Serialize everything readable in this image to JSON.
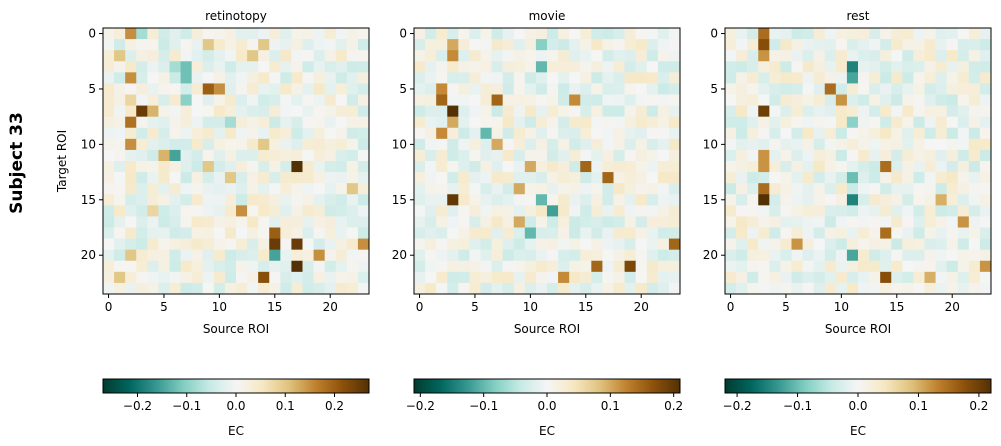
{
  "figure": {
    "row_label": "Subject 33"
  },
  "chart_data": [
    {
      "type": "heatmap",
      "title": "retinotopy",
      "xlabel": "Source ROI",
      "ylabel": "Target ROI",
      "n_rows": 24,
      "n_cols": 24,
      "x_ticks": [
        0,
        5,
        10,
        15,
        20
      ],
      "y_ticks": [
        0,
        5,
        10,
        15,
        20
      ],
      "colormap": "BrBG_r",
      "colorbar": {
        "label": "EC",
        "range": [
          -0.27,
          0.27
        ],
        "ticks": [
          -0.2,
          -0.1,
          0.0,
          0.1,
          0.2
        ],
        "tick_labels": [
          "−0.2",
          "−0.1",
          "0.0",
          "0.1",
          "0.2"
        ]
      },
      "strong_cells": [
        {
          "row": 0,
          "col": 2,
          "value": 0.15
        },
        {
          "row": 0,
          "col": 3,
          "value": -0.08
        },
        {
          "row": 1,
          "col": 9,
          "value": 0.1
        },
        {
          "row": 1,
          "col": 14,
          "value": 0.1
        },
        {
          "row": 2,
          "col": 1,
          "value": 0.1
        },
        {
          "row": 2,
          "col": 13,
          "value": 0.1
        },
        {
          "row": 3,
          "col": 6,
          "value": -0.08
        },
        {
          "row": 3,
          "col": 7,
          "value": -0.12
        },
        {
          "row": 4,
          "col": 2,
          "value": 0.15
        },
        {
          "row": 4,
          "col": 7,
          "value": -0.12
        },
        {
          "row": 5,
          "col": 9,
          "value": 0.2
        },
        {
          "row": 5,
          "col": 10,
          "value": 0.15
        },
        {
          "row": 6,
          "col": 7,
          "value": -0.1
        },
        {
          "row": 6,
          "col": 2,
          "value": 0.08
        },
        {
          "row": 7,
          "col": 3,
          "value": 0.25
        },
        {
          "row": 7,
          "col": 4,
          "value": 0.12
        },
        {
          "row": 8,
          "col": 2,
          "value": 0.18
        },
        {
          "row": 8,
          "col": 11,
          "value": -0.08
        },
        {
          "row": 10,
          "col": 2,
          "value": 0.15
        },
        {
          "row": 10,
          "col": 14,
          "value": 0.1
        },
        {
          "row": 11,
          "col": 5,
          "value": 0.12
        },
        {
          "row": 11,
          "col": 6,
          "value": -0.15
        },
        {
          "row": 12,
          "col": 17,
          "value": 0.27
        },
        {
          "row": 12,
          "col": 9,
          "value": 0.1
        },
        {
          "row": 13,
          "col": 11,
          "value": 0.1
        },
        {
          "row": 14,
          "col": 22,
          "value": 0.1
        },
        {
          "row": 16,
          "col": 12,
          "value": 0.15
        },
        {
          "row": 16,
          "col": 4,
          "value": 0.08
        },
        {
          "row": 18,
          "col": 15,
          "value": 0.2
        },
        {
          "row": 19,
          "col": 15,
          "value": 0.25
        },
        {
          "row": 19,
          "col": 17,
          "value": 0.25
        },
        {
          "row": 19,
          "col": 23,
          "value": 0.15
        },
        {
          "row": 20,
          "col": 15,
          "value": -0.15
        },
        {
          "row": 20,
          "col": 2,
          "value": 0.1
        },
        {
          "row": 20,
          "col": 19,
          "value": 0.15
        },
        {
          "row": 21,
          "col": 17,
          "value": 0.27
        },
        {
          "row": 22,
          "col": 14,
          "value": 0.22
        },
        {
          "row": 22,
          "col": 1,
          "value": 0.1
        }
      ]
    },
    {
      "type": "heatmap",
      "title": "movie",
      "xlabel": "Source ROI",
      "n_rows": 24,
      "n_cols": 24,
      "x_ticks": [
        0,
        5,
        10,
        15,
        20
      ],
      "y_ticks": [
        0,
        5,
        10,
        15,
        20
      ],
      "colormap": "BrBG_r",
      "colorbar": {
        "label": "EC",
        "range": [
          -0.21,
          0.21
        ],
        "ticks": [
          -0.2,
          -0.1,
          0.0,
          0.1,
          0.2
        ],
        "tick_labels": [
          "−0.2",
          "−0.1",
          "0.0",
          "0.1",
          "0.2"
        ]
      },
      "strong_cells": [
        {
          "row": 1,
          "col": 3,
          "value": 0.1
        },
        {
          "row": 1,
          "col": 11,
          "value": -0.08
        },
        {
          "row": 2,
          "col": 3,
          "value": 0.12
        },
        {
          "row": 3,
          "col": 11,
          "value": -0.1
        },
        {
          "row": 5,
          "col": 2,
          "value": 0.12
        },
        {
          "row": 6,
          "col": 2,
          "value": 0.15
        },
        {
          "row": 6,
          "col": 7,
          "value": 0.15
        },
        {
          "row": 6,
          "col": 14,
          "value": 0.12
        },
        {
          "row": 7,
          "col": 3,
          "value": 0.21
        },
        {
          "row": 8,
          "col": 3,
          "value": 0.1
        },
        {
          "row": 9,
          "col": 2,
          "value": 0.12
        },
        {
          "row": 9,
          "col": 6,
          "value": -0.1
        },
        {
          "row": 10,
          "col": 7,
          "value": 0.1
        },
        {
          "row": 12,
          "col": 15,
          "value": 0.15
        },
        {
          "row": 12,
          "col": 10,
          "value": 0.1
        },
        {
          "row": 13,
          "col": 17,
          "value": 0.15
        },
        {
          "row": 14,
          "col": 9,
          "value": 0.1
        },
        {
          "row": 15,
          "col": 3,
          "value": 0.2
        },
        {
          "row": 15,
          "col": 11,
          "value": -0.1
        },
        {
          "row": 16,
          "col": 12,
          "value": -0.12
        },
        {
          "row": 17,
          "col": 9,
          "value": 0.1
        },
        {
          "row": 18,
          "col": 10,
          "value": -0.1
        },
        {
          "row": 19,
          "col": 23,
          "value": 0.15
        },
        {
          "row": 21,
          "col": 16,
          "value": 0.15
        },
        {
          "row": 21,
          "col": 19,
          "value": 0.18
        },
        {
          "row": 22,
          "col": 13,
          "value": 0.12
        }
      ]
    },
    {
      "type": "heatmap",
      "title": "rest",
      "xlabel": "Source ROI",
      "n_rows": 24,
      "n_cols": 24,
      "x_ticks": [
        0,
        5,
        10,
        15,
        20
      ],
      "y_ticks": [
        0,
        5,
        10,
        15,
        20
      ],
      "colormap": "BrBG_r",
      "colorbar": {
        "label": "EC",
        "range": [
          -0.22,
          0.22
        ],
        "ticks": [
          -0.2,
          -0.1,
          0.0,
          0.1,
          0.2
        ],
        "tick_labels": [
          "−0.2",
          "−0.1",
          "0.0",
          "0.1",
          "0.2"
        ]
      },
      "strong_cells": [
        {
          "row": 0,
          "col": 3,
          "value": 0.15
        },
        {
          "row": 1,
          "col": 3,
          "value": 0.18
        },
        {
          "row": 2,
          "col": 3,
          "value": 0.12
        },
        {
          "row": 3,
          "col": 11,
          "value": -0.15
        },
        {
          "row": 4,
          "col": 11,
          "value": -0.12
        },
        {
          "row": 5,
          "col": 9,
          "value": 0.15
        },
        {
          "row": 6,
          "col": 10,
          "value": 0.12
        },
        {
          "row": 7,
          "col": 3,
          "value": 0.2
        },
        {
          "row": 8,
          "col": 11,
          "value": -0.08
        },
        {
          "row": 11,
          "col": 3,
          "value": 0.12
        },
        {
          "row": 12,
          "col": 14,
          "value": 0.15
        },
        {
          "row": 12,
          "col": 3,
          "value": 0.12
        },
        {
          "row": 13,
          "col": 11,
          "value": -0.1
        },
        {
          "row": 14,
          "col": 3,
          "value": 0.15
        },
        {
          "row": 15,
          "col": 3,
          "value": 0.22
        },
        {
          "row": 15,
          "col": 11,
          "value": -0.15
        },
        {
          "row": 15,
          "col": 19,
          "value": 0.1
        },
        {
          "row": 17,
          "col": 21,
          "value": 0.12
        },
        {
          "row": 18,
          "col": 14,
          "value": 0.15
        },
        {
          "row": 19,
          "col": 6,
          "value": 0.12
        },
        {
          "row": 20,
          "col": 11,
          "value": -0.12
        },
        {
          "row": 21,
          "col": 23,
          "value": 0.12
        },
        {
          "row": 22,
          "col": 14,
          "value": 0.18
        },
        {
          "row": 22,
          "col": 18,
          "value": 0.1
        }
      ]
    }
  ]
}
